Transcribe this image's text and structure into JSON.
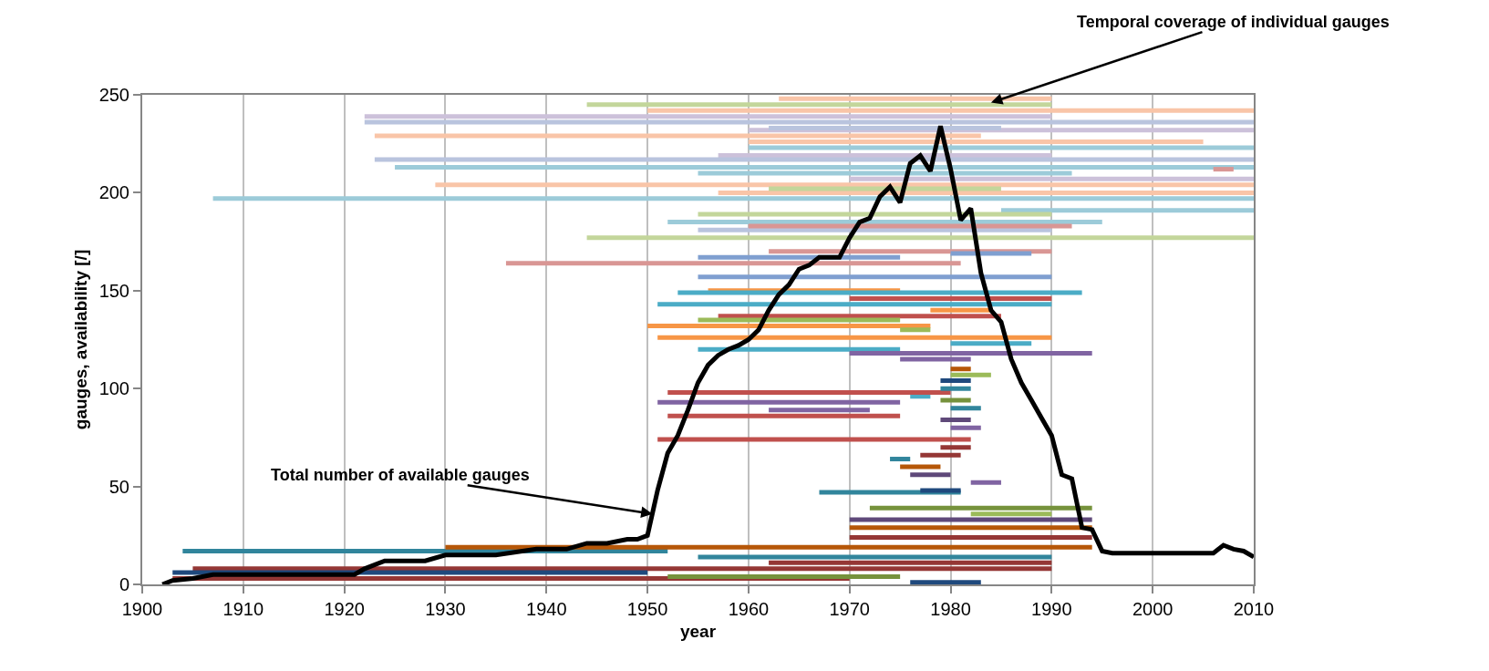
{
  "chart_data": {
    "type": "line",
    "xlabel": "year",
    "ylabel": "gauges, availability [/]",
    "annotations": [
      {
        "text": "Total number of available gauges",
        "x": 1950.5,
        "y": 36
      },
      {
        "text": "Temporal coverage of individual gauges",
        "x": 1984,
        "y": 246
      }
    ],
    "xlim": [
      1900,
      2010
    ],
    "xticks": [
      1900,
      1910,
      1920,
      1930,
      1940,
      1950,
      1960,
      1970,
      1980,
      1990,
      2000,
      2010
    ],
    "ylim": [
      0,
      250
    ],
    "yticks": [
      0,
      50,
      100,
      150,
      200,
      250
    ],
    "grid": "x",
    "marker": "none",
    "line_style": "solid",
    "series": [
      {
        "color": "#9ccbd9",
        "x": [
          1907,
          2010
        ],
        "values": [
          197,
          197
        ]
      },
      {
        "color": "#9ccbd9",
        "x": [
          1925,
          2010
        ],
        "values": [
          213,
          213
        ]
      },
      {
        "color": "#9ccbd9",
        "x": [
          1985,
          2010
        ],
        "values": [
          191,
          191
        ]
      },
      {
        "color": "#9ccbd9",
        "x": [
          1955,
          1992
        ],
        "values": [
          210,
          210
        ]
      },
      {
        "color": "#9ccbd9",
        "x": [
          1952,
          1995
        ],
        "values": [
          185,
          185
        ]
      },
      {
        "color": "#9ccbd9",
        "x": [
          1960,
          2010
        ],
        "values": [
          223,
          223
        ]
      },
      {
        "color": "#ccc1da",
        "x": [
          1922,
          1990
        ],
        "values": [
          239,
          239
        ]
      },
      {
        "color": "#ccc1da",
        "x": [
          1960,
          2010
        ],
        "values": [
          232,
          232
        ]
      },
      {
        "color": "#ccc1da",
        "x": [
          1970,
          2010
        ],
        "values": [
          207,
          207
        ]
      },
      {
        "color": "#ccc1da",
        "x": [
          1957,
          1990
        ],
        "values": [
          219,
          219
        ]
      },
      {
        "color": "#f9c5a8",
        "x": [
          1923,
          1983
        ],
        "values": [
          229,
          229
        ]
      },
      {
        "color": "#f9c5a8",
        "x": [
          1929,
          2010
        ],
        "values": [
          204,
          204
        ]
      },
      {
        "color": "#f9c5a8",
        "x": [
          1950,
          2010
        ],
        "values": [
          242,
          242
        ]
      },
      {
        "color": "#f9c5a8",
        "x": [
          1960,
          2005
        ],
        "values": [
          226,
          226
        ]
      },
      {
        "color": "#f9c5a8",
        "x": [
          1957,
          2010
        ],
        "values": [
          200,
          200
        ]
      },
      {
        "color": "#f9c5a8",
        "x": [
          1963,
          1990
        ],
        "values": [
          248,
          248
        ]
      },
      {
        "color": "#b9c4de",
        "x": [
          1922,
          2010
        ],
        "values": [
          236,
          236
        ]
      },
      {
        "color": "#b9c4de",
        "x": [
          1923,
          2010
        ],
        "values": [
          217,
          217
        ]
      },
      {
        "color": "#b9c4de",
        "x": [
          1955,
          1990
        ],
        "values": [
          181,
          181
        ]
      },
      {
        "color": "#b9c4de",
        "x": [
          1962,
          1985
        ],
        "values": [
          233,
          233
        ]
      },
      {
        "color": "#c3d69b",
        "x": [
          1944,
          1990
        ],
        "values": [
          245,
          245
        ]
      },
      {
        "color": "#c3d69b",
        "x": [
          1944,
          2010
        ],
        "values": [
          177,
          177
        ]
      },
      {
        "color": "#c3d69b",
        "x": [
          1962,
          1985
        ],
        "values": [
          202,
          202
        ]
      },
      {
        "color": "#c3d69b",
        "x": [
          1955,
          1990
        ],
        "values": [
          189,
          189
        ]
      },
      {
        "color": "#d99694",
        "x": [
          1936,
          1981
        ],
        "values": [
          164,
          164
        ]
      },
      {
        "color": "#d99694",
        "x": [
          1960,
          1992
        ],
        "values": [
          183,
          183
        ]
      },
      {
        "color": "#d99694",
        "x": [
          1962,
          1990
        ],
        "values": [
          170,
          170
        ]
      },
      {
        "color": "#d99694",
        "x": [
          2006,
          2008
        ],
        "values": [
          212,
          212
        ]
      },
      {
        "color": "#7f9fd0",
        "x": [
          1955,
          1975
        ],
        "values": [
          167,
          167
        ]
      },
      {
        "color": "#7f9fd0",
        "x": [
          1955,
          1990
        ],
        "values": [
          157,
          157
        ]
      },
      {
        "color": "#7f9fd0",
        "x": [
          1980,
          1988
        ],
        "values": [
          169,
          169
        ]
      },
      {
        "color": "#f79646",
        "x": [
          1950,
          1978
        ],
        "values": [
          132,
          132
        ]
      },
      {
        "color": "#f79646",
        "x": [
          1951,
          1990
        ],
        "values": [
          126,
          126
        ]
      },
      {
        "color": "#f79646",
        "x": [
          1956,
          1975
        ],
        "values": [
          150,
          150
        ]
      },
      {
        "color": "#f79646",
        "x": [
          1978,
          1984
        ],
        "values": [
          140,
          140
        ]
      },
      {
        "color": "#4bacc6",
        "x": [
          1951,
          1990
        ],
        "values": [
          143,
          143
        ]
      },
      {
        "color": "#4bacc6",
        "x": [
          1953,
          1993
        ],
        "values": [
          149,
          149
        ]
      },
      {
        "color": "#4bacc6",
        "x": [
          1955,
          1975
        ],
        "values": [
          120,
          120
        ]
      },
      {
        "color": "#4bacc6",
        "x": [
          1980,
          1988
        ],
        "values": [
          123,
          123
        ]
      },
      {
        "color": "#4bacc6",
        "x": [
          1976,
          1978
        ],
        "values": [
          96,
          96
        ]
      },
      {
        "color": "#c0504d",
        "x": [
          1952,
          1980
        ],
        "values": [
          98,
          98
        ]
      },
      {
        "color": "#c0504d",
        "x": [
          1952,
          1975
        ],
        "values": [
          86,
          86
        ]
      },
      {
        "color": "#c0504d",
        "x": [
          1951,
          1982
        ],
        "values": [
          74,
          74
        ]
      },
      {
        "color": "#c0504d",
        "x": [
          1957,
          1985
        ],
        "values": [
          137,
          137
        ]
      },
      {
        "color": "#c0504d",
        "x": [
          1970,
          1990
        ],
        "values": [
          146,
          146
        ]
      },
      {
        "color": "#8064a2",
        "x": [
          1951,
          1975
        ],
        "values": [
          93,
          93
        ]
      },
      {
        "color": "#8064a2",
        "x": [
          1970,
          1994
        ],
        "values": [
          118,
          118
        ]
      },
      {
        "color": "#8064a2",
        "x": [
          1962,
          1972
        ],
        "values": [
          89,
          89
        ]
      },
      {
        "color": "#8064a2",
        "x": [
          1975,
          1982
        ],
        "values": [
          115,
          115
        ]
      },
      {
        "color": "#8064a2",
        "x": [
          1982,
          1985
        ],
        "values": [
          52,
          52
        ]
      },
      {
        "color": "#8064a2",
        "x": [
          1980,
          1983
        ],
        "values": [
          80,
          80
        ]
      },
      {
        "color": "#9bbb59",
        "x": [
          1955,
          1975
        ],
        "values": [
          135,
          135
        ]
      },
      {
        "color": "#9bbb59",
        "x": [
          1980,
          1984
        ],
        "values": [
          107,
          107
        ]
      },
      {
        "color": "#9bbb59",
        "x": [
          1982,
          1990
        ],
        "values": [
          36,
          36
        ]
      },
      {
        "color": "#9bbb59",
        "x": [
          1975,
          1978
        ],
        "values": [
          130,
          130
        ]
      },
      {
        "color": "#31859c",
        "x": [
          1904,
          1952
        ],
        "values": [
          17,
          17
        ]
      },
      {
        "color": "#31859c",
        "x": [
          1967,
          1981
        ],
        "values": [
          47,
          47
        ]
      },
      {
        "color": "#31859c",
        "x": [
          1974,
          1976
        ],
        "values": [
          64,
          64
        ]
      },
      {
        "color": "#31859c",
        "x": [
          1955,
          1990
        ],
        "values": [
          14,
          14
        ]
      },
      {
        "color": "#31859c",
        "x": [
          1979,
          1982
        ],
        "values": [
          100,
          100
        ]
      },
      {
        "color": "#31859c",
        "x": [
          1980,
          1983
        ],
        "values": [
          90,
          90
        ]
      },
      {
        "color": "#953735",
        "x": [
          1905,
          1990
        ],
        "values": [
          8,
          8
        ]
      },
      {
        "color": "#953735",
        "x": [
          1903,
          1970
        ],
        "values": [
          3,
          3
        ]
      },
      {
        "color": "#953735",
        "x": [
          1970,
          1994
        ],
        "values": [
          24,
          24
        ]
      },
      {
        "color": "#953735",
        "x": [
          1977,
          1981
        ],
        "values": [
          66,
          66
        ]
      },
      {
        "color": "#953735",
        "x": [
          1979,
          1982
        ],
        "values": [
          70,
          70
        ]
      },
      {
        "color": "#953735",
        "x": [
          1962,
          1990
        ],
        "values": [
          11,
          11
        ]
      },
      {
        "color": "#1f497d",
        "x": [
          1903,
          1950
        ],
        "values": [
          6,
          6
        ]
      },
      {
        "color": "#1f497d",
        "x": [
          1976,
          1983
        ],
        "values": [
          1,
          1
        ]
      },
      {
        "color": "#1f497d",
        "x": [
          1979,
          1982
        ],
        "values": [
          104,
          104
        ]
      },
      {
        "color": "#1f497d",
        "x": [
          1977,
          1981
        ],
        "values": [
          48,
          48
        ]
      },
      {
        "color": "#5f497a",
        "x": [
          1970,
          1994
        ],
        "values": [
          33,
          33
        ]
      },
      {
        "color": "#5f497a",
        "x": [
          1979,
          1982
        ],
        "values": [
          84,
          84
        ]
      },
      {
        "color": "#5f497a",
        "x": [
          1976,
          1980
        ],
        "values": [
          56,
          56
        ]
      },
      {
        "color": "#76923c",
        "x": [
          1952,
          1975
        ],
        "values": [
          4,
          4
        ]
      },
      {
        "color": "#76923c",
        "x": [
          1972,
          1994
        ],
        "values": [
          39,
          39
        ]
      },
      {
        "color": "#76923c",
        "x": [
          1979,
          1982
        ],
        "values": [
          94,
          94
        ]
      },
      {
        "color": "#b65708",
        "x": [
          1930,
          1994
        ],
        "values": [
          19,
          19
        ]
      },
      {
        "color": "#b65708",
        "x": [
          1970,
          1994
        ],
        "values": [
          29,
          29
        ]
      },
      {
        "color": "#b65708",
        "x": [
          1980,
          1982
        ],
        "values": [
          110,
          110
        ]
      },
      {
        "color": "#b65708",
        "x": [
          1975,
          1979
        ],
        "values": [
          60,
          60
        ]
      },
      {
        "color": "#000000",
        "x": [
          1902,
          1903,
          1905,
          1907,
          1921,
          1922,
          1924,
          1928,
          1930,
          1935,
          1939,
          1942,
          1944,
          1946,
          1948,
          1949,
          1950,
          1951,
          1952,
          1953,
          1954,
          1955,
          1956,
          1957,
          1958,
          1959,
          1960,
          1961,
          1962,
          1963,
          1964,
          1965,
          1966,
          1967,
          1968,
          1969,
          1970,
          1971,
          1972,
          1973,
          1974,
          1975,
          1976,
          1977,
          1978,
          1979,
          1980,
          1981,
          1982,
          1983,
          1984,
          1985,
          1986,
          1987,
          1988,
          1989,
          1990,
          1991,
          1992,
          1993,
          1994,
          1995,
          1996,
          2006,
          2007,
          2008,
          2009,
          2010
        ],
        "values": [
          0,
          2,
          3,
          5,
          5,
          8,
          12,
          12,
          15,
          15,
          18,
          18,
          21,
          21,
          23,
          23,
          25,
          48,
          67,
          76,
          89,
          103,
          112,
          117,
          120,
          122,
          125,
          130,
          140,
          148,
          153,
          161,
          163,
          167,
          167,
          167,
          177,
          185,
          187,
          198,
          203,
          195,
          215,
          219,
          211,
          234,
          212,
          186,
          192,
          159,
          140,
          134,
          115,
          103,
          94,
          85,
          76,
          56,
          54,
          29,
          28,
          17,
          16,
          16,
          20,
          18,
          17,
          14
        ]
      }
    ]
  }
}
